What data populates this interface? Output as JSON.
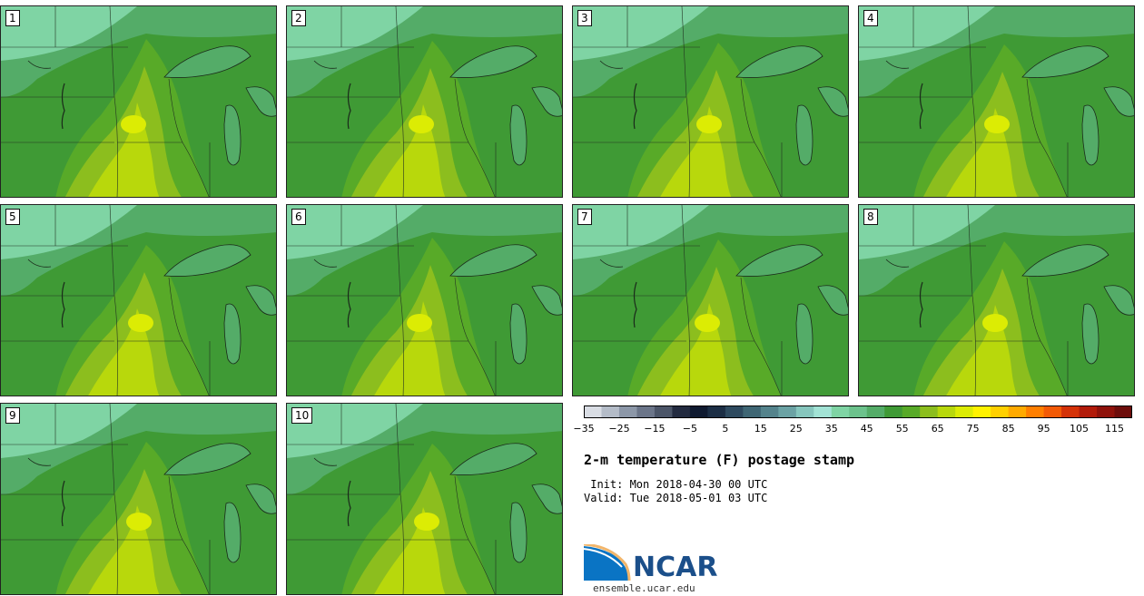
{
  "panels": [
    "1",
    "2",
    "3",
    "4",
    "5",
    "6",
    "7",
    "8",
    "9",
    "10"
  ],
  "chart_data": {
    "type": "heatmap",
    "title": "2-m temperature (F) postage stamp",
    "colorbar": {
      "levels_min": -35,
      "levels_max": 120,
      "step": 5,
      "tick_labels": [
        "−35",
        "−25",
        "−15",
        "−5",
        "5",
        "15",
        "25",
        "35",
        "45",
        "55",
        "65",
        "75",
        "85",
        "95",
        "105",
        "115"
      ],
      "colors": [
        "#d9dde4",
        "#b4bcc8",
        "#8c97a8",
        "#6b7589",
        "#4b5568",
        "#232b40",
        "#0f1a30",
        "#1c2e45",
        "#2e4a5f",
        "#3f6674",
        "#54838c",
        "#6ba2a4",
        "#86c6bd",
        "#a2e3d5",
        "#7fd4a4",
        "#6cc28c",
        "#54ac68",
        "#3f9a35",
        "#58aa28",
        "#8cbe1e",
        "#b8d80c",
        "#dcec04",
        "#fff200",
        "#ffd000",
        "#ffaa00",
        "#ff7f00",
        "#f25a06",
        "#d43208",
        "#b21b0a",
        "#8f120b",
        "#6d0d0b"
      ]
    },
    "annotations": {
      "init": "Init: Mon 2018-04-30 00 UTC",
      "valid": "Valid: Tue 2018-05-01 03 UTC"
    }
  },
  "labels": {
    "title": "2-m temperature (F) postage stamp",
    "init": " Init: Mon 2018-04-30 00 UTC",
    "valid": "Valid: Tue 2018-05-01 03 UTC",
    "logo": "NCAR",
    "site": "ensemble.ucar.edu"
  }
}
